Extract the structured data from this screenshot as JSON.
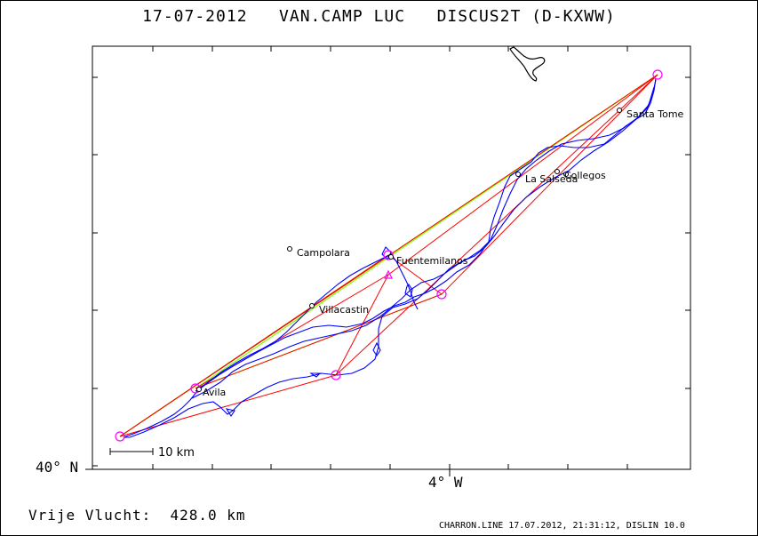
{
  "header": {
    "title": "17-07-2012   VAN.CAMP LUC   DISCUS2T (D-KXWW)"
  },
  "axes": {
    "lat_label": "40° N",
    "lon_label": "4° W"
  },
  "scale": {
    "label": "10 km"
  },
  "distance": {
    "text": "Vrije Vlucht:  428.0 km"
  },
  "footer": {
    "text": "CHARRON.LINE 17.07.2012, 21:31:12, DISLIN 10.0"
  },
  "places": [
    {
      "name": "Santa Tome"
    },
    {
      "name": "La Salseda"
    },
    {
      "name": "Collegos"
    },
    {
      "name": "Campolara"
    },
    {
      "name": "Fuentemilanos"
    },
    {
      "name": "Villacastin"
    },
    {
      "name": "Avila"
    }
  ],
  "colors": {
    "track": "#0000ff",
    "task_line": "#ff0000",
    "free_flight_line": "#80ff00",
    "turnpoint": "#ff00ff",
    "lake": "#000000"
  }
}
